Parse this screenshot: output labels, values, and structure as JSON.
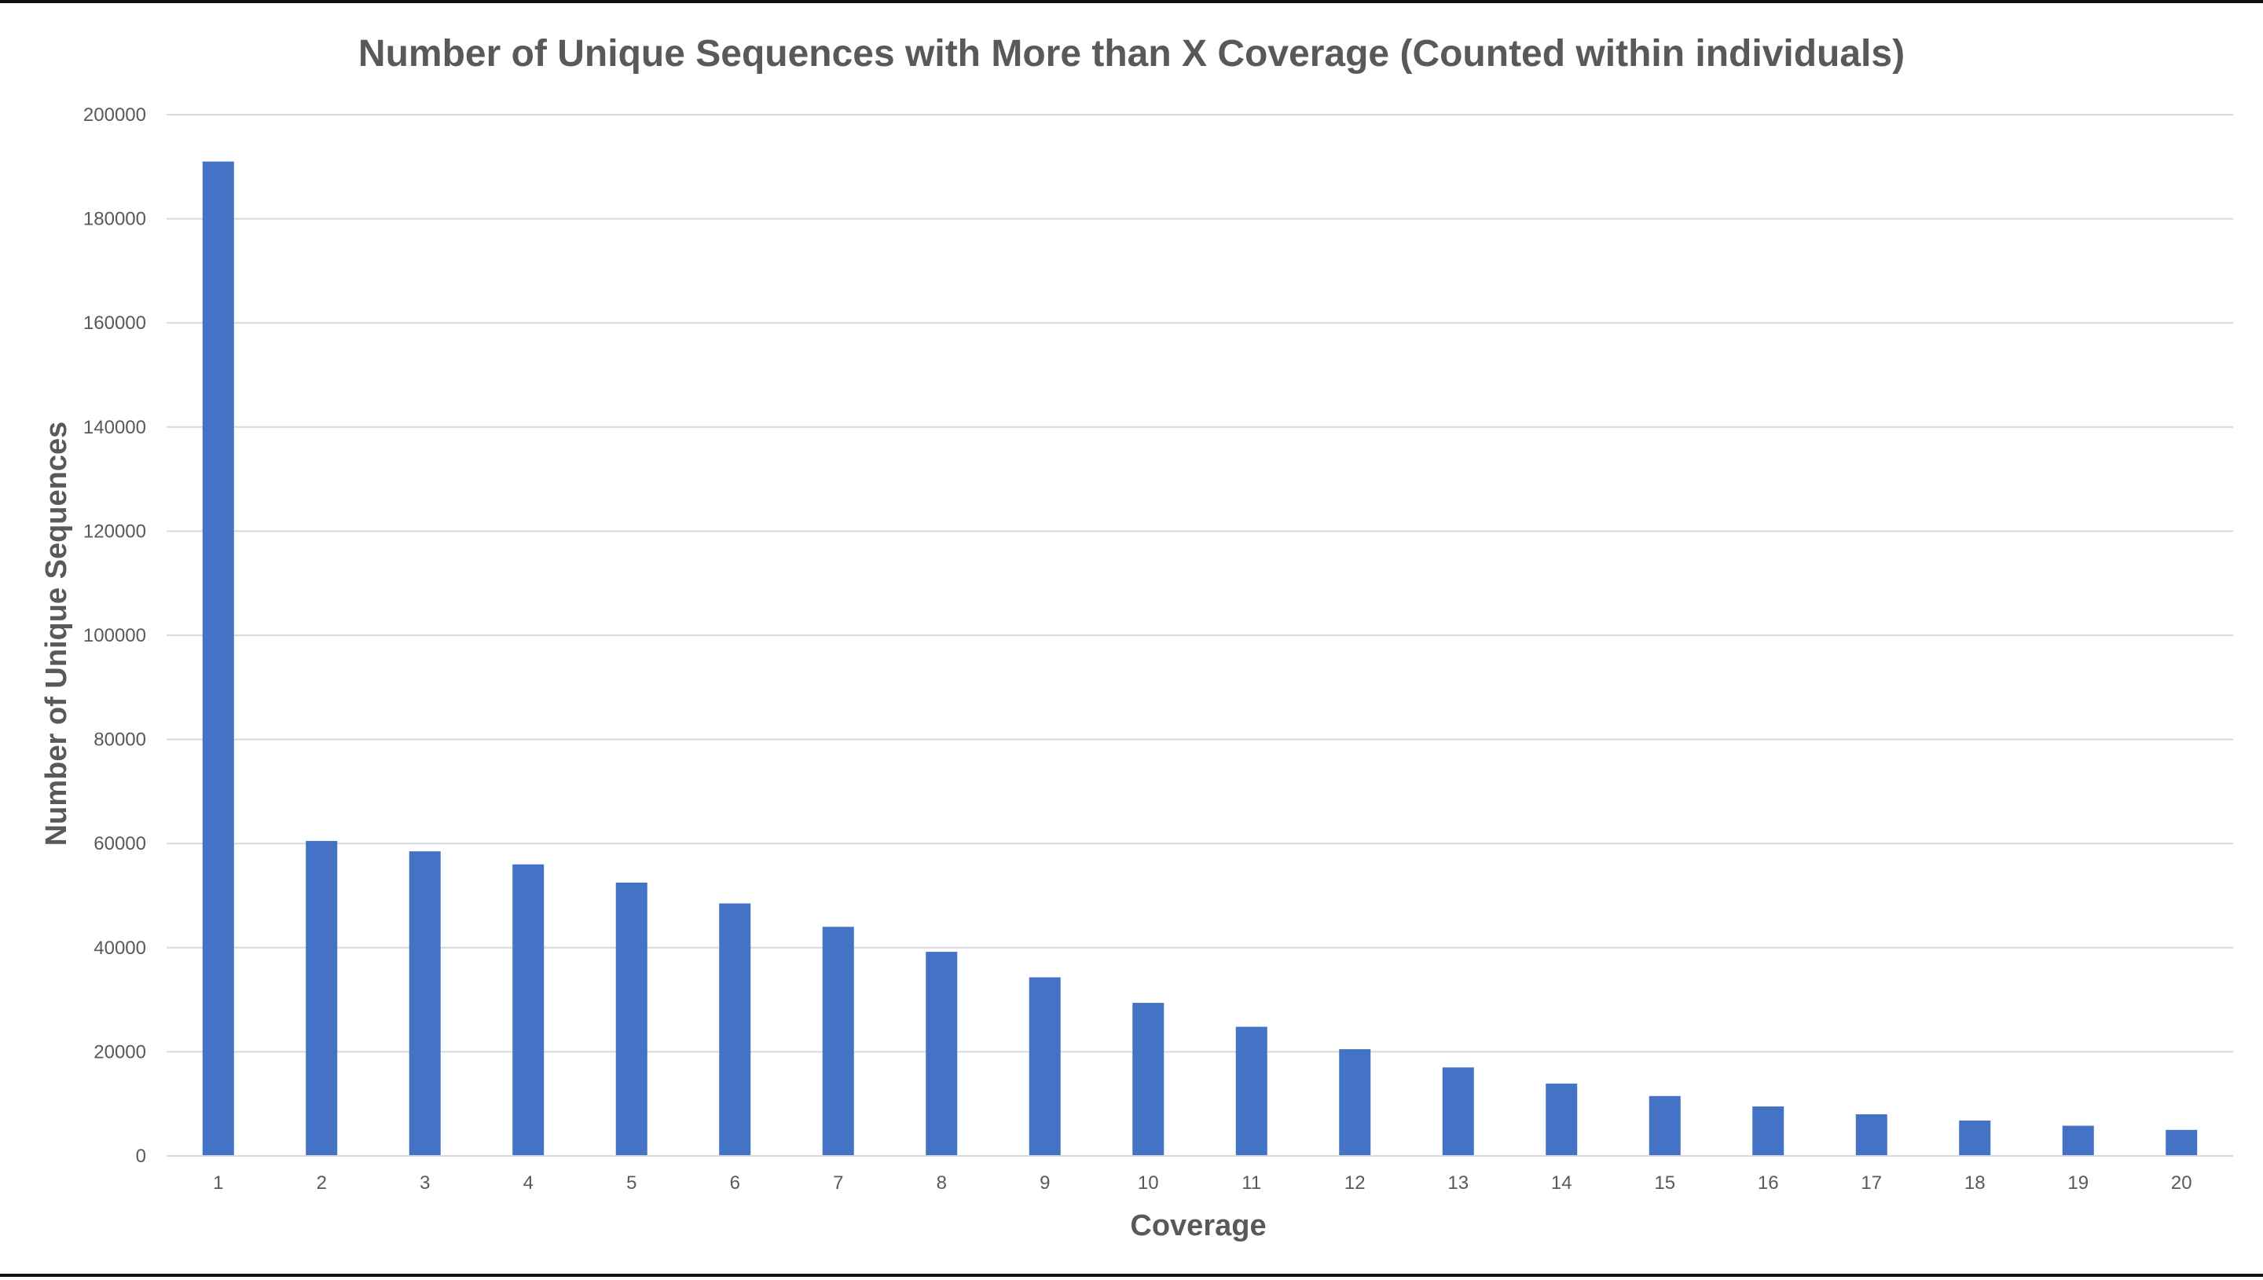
{
  "chart_data": {
    "type": "bar",
    "title": "Number of Unique Sequences with More than X Coverage (Counted within individuals)",
    "xlabel": "Coverage",
    "ylabel": "Number of Unique Sequences",
    "categories": [
      "1",
      "2",
      "3",
      "4",
      "5",
      "6",
      "7",
      "8",
      "9",
      "10",
      "11",
      "12",
      "13",
      "14",
      "15",
      "16",
      "17",
      "18",
      "19",
      "20"
    ],
    "values": [
      191000,
      60500,
      58500,
      56000,
      52500,
      48500,
      44000,
      39200,
      34300,
      29400,
      24800,
      20500,
      17000,
      13900,
      11500,
      9500,
      8000,
      6800,
      5800,
      5000
    ],
    "ylim": [
      0,
      200000
    ],
    "yticks": [
      "0",
      "20000",
      "40000",
      "60000",
      "80000",
      "100000",
      "120000",
      "140000",
      "160000",
      "180000",
      "200000"
    ],
    "grid": true,
    "legend": "none",
    "bar_color": "#4472c4",
    "grid_color": "#d9d9d9",
    "text_color": "#595959"
  }
}
